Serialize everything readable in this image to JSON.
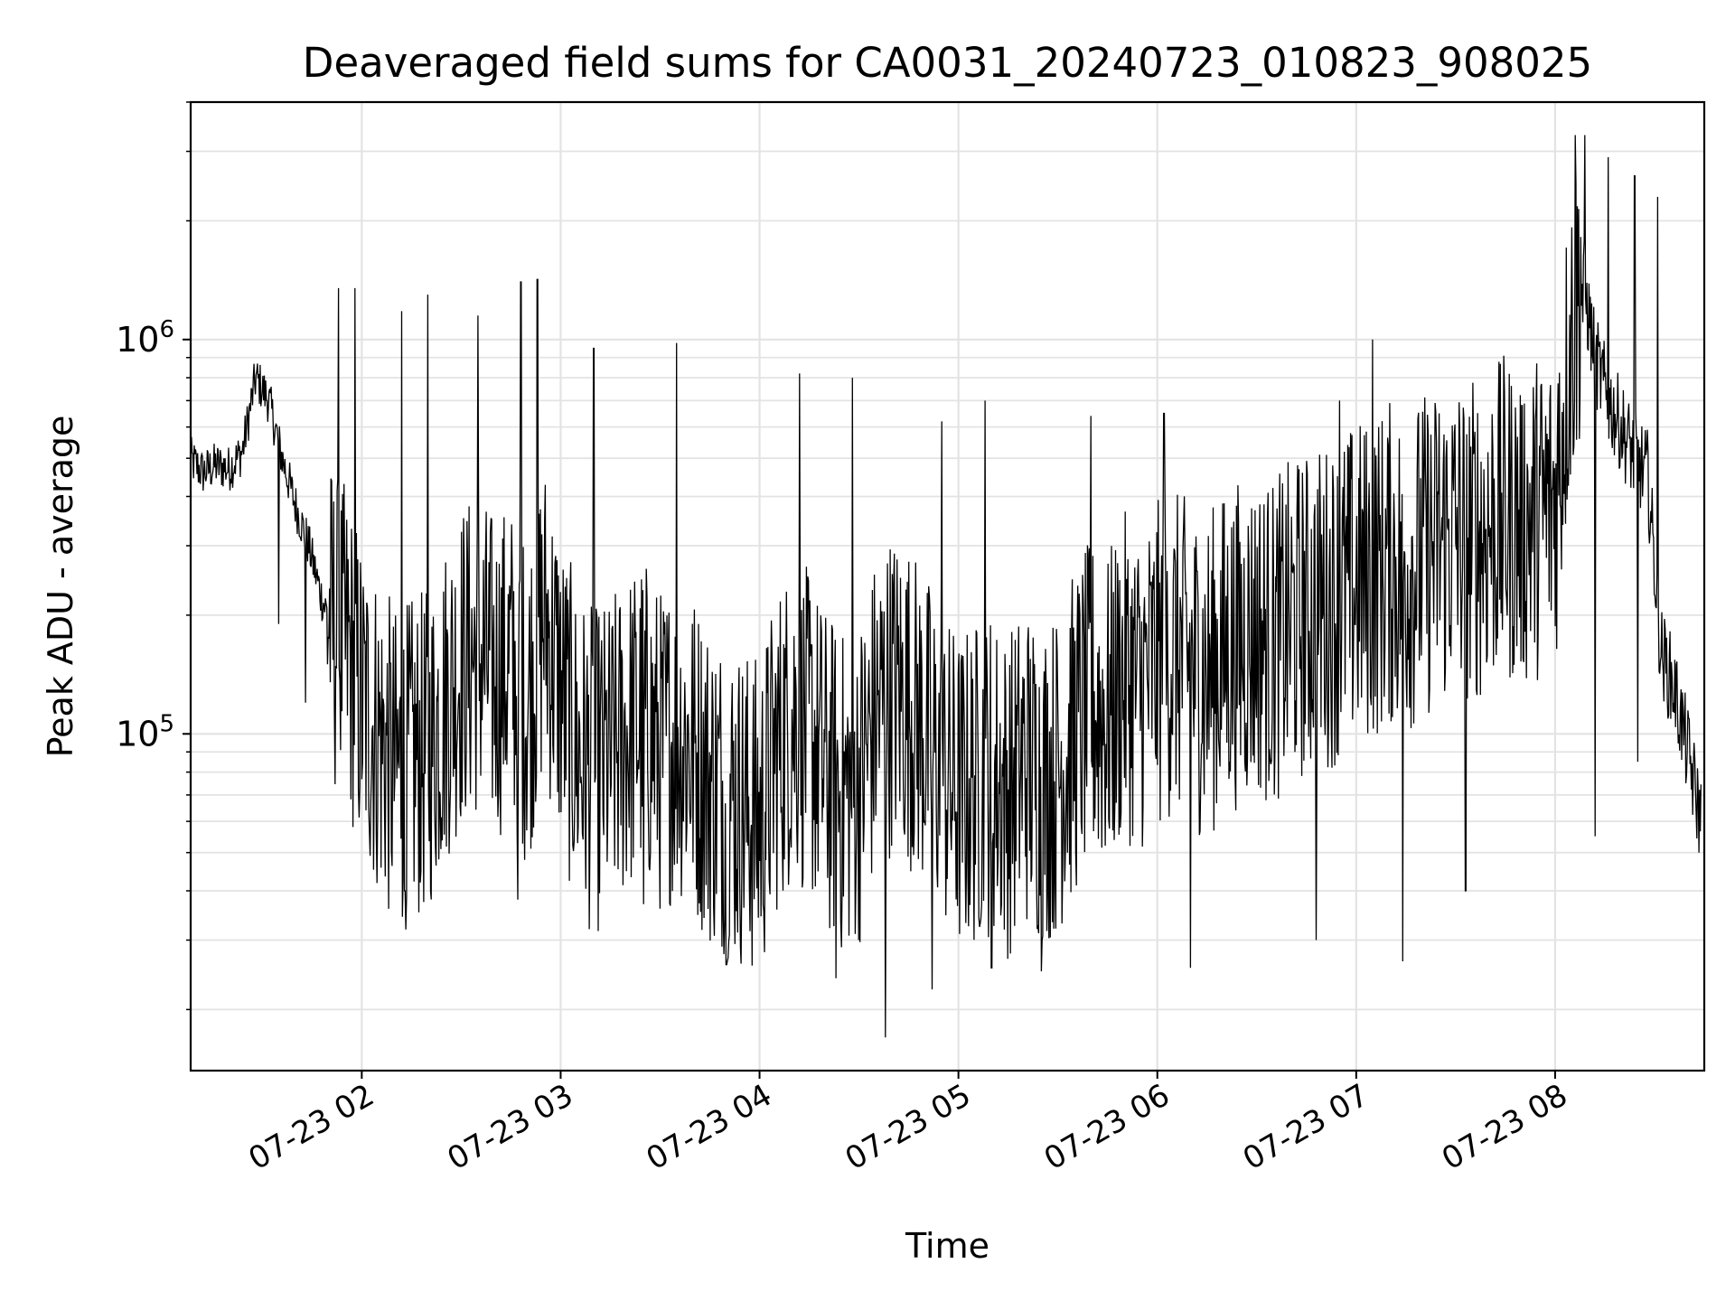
{
  "chart_data": {
    "type": "line",
    "title": "Deaveraged field sums for CA0031_20240723_010823_908025",
    "xlabel": "Time",
    "ylabel": "Peak ADU - average",
    "yscale": "log",
    "ylim": [
      14000,
      4000000
    ],
    "xlim": [
      "2024-07-23 01:08:23",
      "2024-07-23 08:45:00"
    ],
    "grid": true,
    "x_ticks": [
      {
        "t": "2024-07-23 02:00",
        "label": "07-23 02"
      },
      {
        "t": "2024-07-23 03:00",
        "label": "07-23 03"
      },
      {
        "t": "2024-07-23 04:00",
        "label": "07-23 04"
      },
      {
        "t": "2024-07-23 05:00",
        "label": "07-23 05"
      },
      {
        "t": "2024-07-23 06:00",
        "label": "07-23 06"
      },
      {
        "t": "2024-07-23 07:00",
        "label": "07-23 07"
      },
      {
        "t": "2024-07-23 08:00",
        "label": "07-23 08"
      }
    ],
    "y_ticks": [
      {
        "value": 100000,
        "base": "10",
        "exp": "5"
      },
      {
        "value": 1000000,
        "base": "10",
        "exp": "6"
      }
    ],
    "series": [
      {
        "color": "#000000",
        "x": [
          "2024-07-23 01:08",
          "2024-07-23 01:12",
          "2024-07-23 01:16",
          "2024-07-23 01:20",
          "2024-07-23 01:24",
          "2024-07-23 01:28",
          "2024-07-23 01:32",
          "2024-07-23 01:36",
          "2024-07-23 01:40",
          "2024-07-23 01:44",
          "2024-07-23 01:48",
          "2024-07-23 01:52",
          "2024-07-23 01:56",
          "2024-07-23 02:00",
          "2024-07-23 02:05",
          "2024-07-23 02:10",
          "2024-07-23 02:15",
          "2024-07-23 02:20",
          "2024-07-23 02:25",
          "2024-07-23 02:30",
          "2024-07-23 02:35",
          "2024-07-23 02:40",
          "2024-07-23 02:45",
          "2024-07-23 02:50",
          "2024-07-23 02:55",
          "2024-07-23 03:00",
          "2024-07-23 03:05",
          "2024-07-23 03:10",
          "2024-07-23 03:15",
          "2024-07-23 03:20",
          "2024-07-23 03:25",
          "2024-07-23 03:30",
          "2024-07-23 03:35",
          "2024-07-23 03:40",
          "2024-07-23 03:45",
          "2024-07-23 03:50",
          "2024-07-23 03:55",
          "2024-07-23 04:00",
          "2024-07-23 04:05",
          "2024-07-23 04:10",
          "2024-07-23 04:15",
          "2024-07-23 04:20",
          "2024-07-23 04:25",
          "2024-07-23 04:30",
          "2024-07-23 04:35",
          "2024-07-23 04:40",
          "2024-07-23 04:45",
          "2024-07-23 04:50",
          "2024-07-23 04:55",
          "2024-07-23 05:00",
          "2024-07-23 05:05",
          "2024-07-23 05:10",
          "2024-07-23 05:15",
          "2024-07-23 05:20",
          "2024-07-23 05:25",
          "2024-07-23 05:30",
          "2024-07-23 05:35",
          "2024-07-23 05:40",
          "2024-07-23 05:45",
          "2024-07-23 05:50",
          "2024-07-23 05:55",
          "2024-07-23 06:00",
          "2024-07-23 06:05",
          "2024-07-23 06:10",
          "2024-07-23 06:15",
          "2024-07-23 06:20",
          "2024-07-23 06:25",
          "2024-07-23 06:30",
          "2024-07-23 06:35",
          "2024-07-23 06:40",
          "2024-07-23 06:45",
          "2024-07-23 06:50",
          "2024-07-23 06:55",
          "2024-07-23 07:00",
          "2024-07-23 07:05",
          "2024-07-23 07:10",
          "2024-07-23 07:15",
          "2024-07-23 07:20",
          "2024-07-23 07:25",
          "2024-07-23 07:30",
          "2024-07-23 07:35",
          "2024-07-23 07:40",
          "2024-07-23 07:45",
          "2024-07-23 07:50",
          "2024-07-23 07:55",
          "2024-07-23 08:00",
          "2024-07-23 08:04",
          "2024-07-23 08:08",
          "2024-07-23 08:12",
          "2024-07-23 08:16",
          "2024-07-23 08:20",
          "2024-07-23 08:24",
          "2024-07-23 08:28",
          "2024-07-23 08:32",
          "2024-07-23 08:36",
          "2024-07-23 08:40",
          "2024-07-23 08:44"
        ],
        "y": [
          500000,
          460000,
          480000,
          470000,
          520000,
          800000,
          700000,
          500000,
          380000,
          300000,
          220000,
          180000,
          160000,
          120000,
          100000,
          80000,
          85000,
          90000,
          120000,
          150000,
          160000,
          140000,
          150000,
          120000,
          200000,
          130000,
          90000,
          80000,
          85000,
          100000,
          110000,
          90000,
          100000,
          90000,
          75000,
          70000,
          65000,
          60000,
          90000,
          110000,
          100000,
          80000,
          70000,
          75000,
          110000,
          130000,
          120000,
          100000,
          80000,
          70000,
          75000,
          80000,
          70000,
          85000,
          75000,
          80000,
          100000,
          120000,
          110000,
          140000,
          130000,
          150000,
          160000,
          150000,
          140000,
          160000,
          170000,
          180000,
          170000,
          190000,
          200000,
          210000,
          220000,
          240000,
          250000,
          270000,
          260000,
          280000,
          300000,
          320000,
          310000,
          330000,
          350000,
          340000,
          360000,
          380000,
          900000,
          1500000,
          900000,
          700000,
          600000,
          500000,
          450000,
          160000,
          130000,
          90000,
          60000
        ],
        "peaks": [
          {
            "t": "2024-07-23 01:53",
            "y": 1350000
          },
          {
            "t": "2024-07-23 01:58",
            "y": 1350000
          },
          {
            "t": "2024-07-23 02:12",
            "y": 1180000
          },
          {
            "t": "2024-07-23 02:20",
            "y": 1300000
          },
          {
            "t": "2024-07-23 02:35",
            "y": 1150000
          },
          {
            "t": "2024-07-23 02:48",
            "y": 1400000
          },
          {
            "t": "2024-07-23 02:53",
            "y": 1420000
          },
          {
            "t": "2024-07-23 03:10",
            "y": 950000
          },
          {
            "t": "2024-07-23 03:35",
            "y": 980000
          },
          {
            "t": "2024-07-23 04:12",
            "y": 820000
          },
          {
            "t": "2024-07-23 04:28",
            "y": 800000
          },
          {
            "t": "2024-07-23 04:55",
            "y": 620000
          },
          {
            "t": "2024-07-23 05:08",
            "y": 700000
          },
          {
            "t": "2024-07-23 05:40",
            "y": 640000
          },
          {
            "t": "2024-07-23 06:02",
            "y": 650000
          },
          {
            "t": "2024-07-23 06:55",
            "y": 700000
          },
          {
            "t": "2024-07-23 07:05",
            "y": 1000000
          },
          {
            "t": "2024-07-23 07:25",
            "y": 650000
          },
          {
            "t": "2024-07-23 07:50",
            "y": 680000
          },
          {
            "t": "2024-07-23 08:06",
            "y": 3300000
          },
          {
            "t": "2024-07-23 08:09",
            "y": 3300000
          },
          {
            "t": "2024-07-23 08:16",
            "y": 2900000
          },
          {
            "t": "2024-07-23 08:24",
            "y": 2600000
          },
          {
            "t": "2024-07-23 08:31",
            "y": 2300000
          }
        ],
        "dips": [
          {
            "t": "2024-07-23 01:35",
            "y": 190000
          },
          {
            "t": "2024-07-23 01:43",
            "y": 120000
          },
          {
            "t": "2024-07-23 02:13",
            "y": 40000
          },
          {
            "t": "2024-07-23 02:47",
            "y": 38000
          },
          {
            "t": "2024-07-23 03:25",
            "y": 37000
          },
          {
            "t": "2024-07-23 03:50",
            "y": 26000
          },
          {
            "t": "2024-07-23 04:23",
            "y": 24000
          },
          {
            "t": "2024-07-23 04:38",
            "y": 17000
          },
          {
            "t": "2024-07-23 04:52",
            "y": 22500
          },
          {
            "t": "2024-07-23 05:10",
            "y": 25500
          },
          {
            "t": "2024-07-23 05:25",
            "y": 25000
          },
          {
            "t": "2024-07-23 06:10",
            "y": 25500
          },
          {
            "t": "2024-07-23 06:48",
            "y": 30000
          },
          {
            "t": "2024-07-23 07:14",
            "y": 26500
          },
          {
            "t": "2024-07-23 07:33",
            "y": 40000
          },
          {
            "t": "2024-07-23 08:12",
            "y": 55000
          },
          {
            "t": "2024-07-23 08:25",
            "y": 85000
          }
        ]
      }
    ]
  }
}
